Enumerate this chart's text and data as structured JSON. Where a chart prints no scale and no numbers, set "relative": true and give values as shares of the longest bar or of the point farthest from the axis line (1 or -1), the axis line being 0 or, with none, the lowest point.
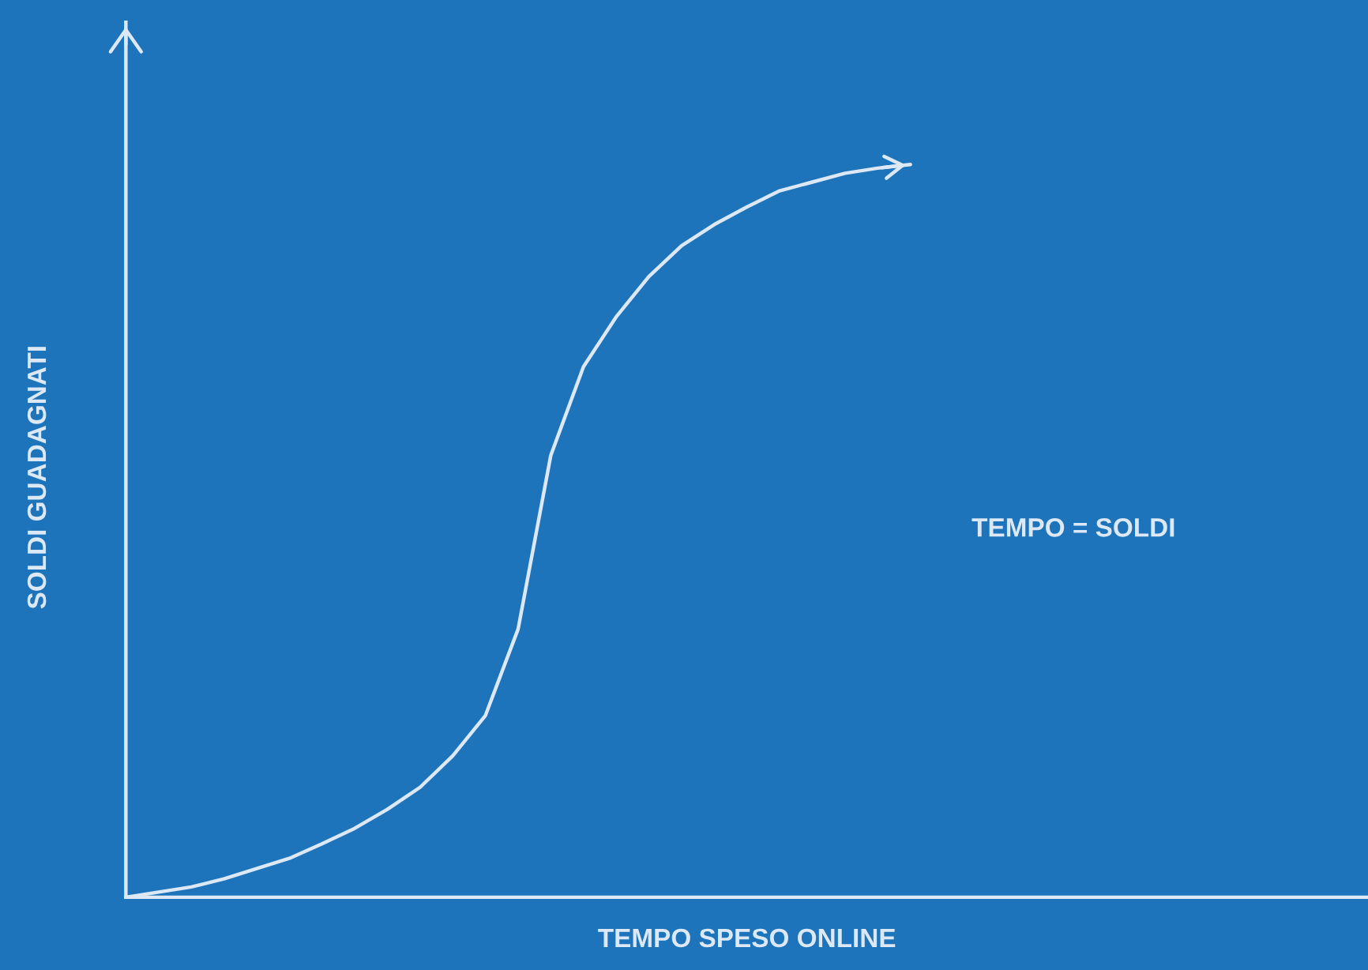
{
  "chart_data": {
    "type": "line",
    "relative": true,
    "xlabel": "TEMPO SPESO ONLINE",
    "ylabel": "SOLDI GUADAGNATI",
    "annotations": [
      "TEMPO = SOLDI"
    ],
    "tick_labels": false,
    "grid": false,
    "legend": false,
    "marker": "none",
    "line_style": "solid",
    "categories": [
      null,
      null,
      null,
      null,
      null,
      null,
      null,
      null,
      null,
      null,
      null,
      null,
      null,
      null,
      null,
      null,
      null,
      null,
      null,
      null,
      null,
      null,
      null,
      null,
      null,
      null,
      null,
      null,
      null,
      null,
      null,
      null,
      null,
      null,
      null,
      null,
      null,
      null,
      null
    ],
    "series": [
      {
        "color": "#dce8f5",
        "values": [
          0,
          0.007,
          0.014,
          0.025,
          0.039,
          0.053,
          0.073,
          0.094,
          0.12,
          0.15,
          0.193,
          0.248,
          0.366,
          0.603,
          0.724,
          0.792,
          0.847,
          0.889,
          0.918,
          0.942,
          0.964,
          0.976,
          0.988,
          0.995,
          1,
          null,
          null,
          null,
          null,
          null,
          null,
          null,
          null,
          null,
          null,
          null,
          null,
          null,
          null
        ]
      }
    ]
  }
}
